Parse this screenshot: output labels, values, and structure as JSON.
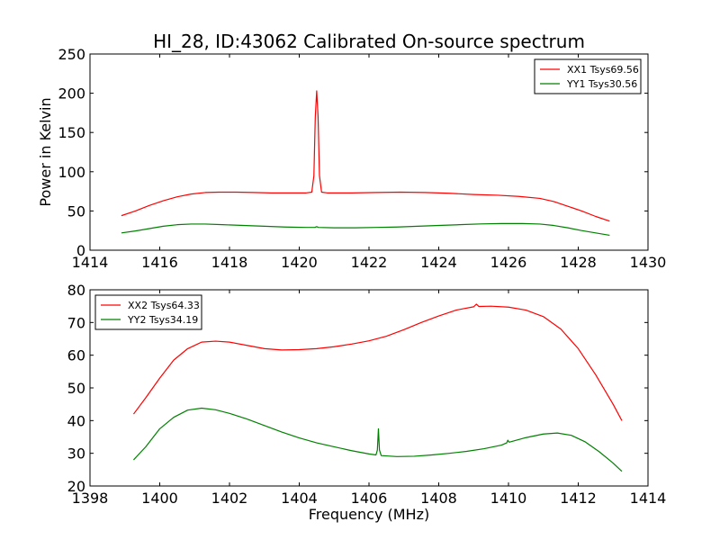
{
  "figure_title": "HI_28, ID:43062 Calibrated On-source spectrum",
  "chart_data": [
    {
      "type": "line",
      "title": "HI_28, ID:43062 Calibrated On-source spectrum",
      "xlabel": "",
      "ylabel": "Power in Kelvin",
      "xlim": [
        1414,
        1430
      ],
      "ylim": [
        0,
        250
      ],
      "xticks": [
        1414,
        1416,
        1418,
        1420,
        1422,
        1424,
        1426,
        1428,
        1430
      ],
      "yticks": [
        0,
        50,
        100,
        150,
        200,
        250
      ],
      "legend_position": "top-right",
      "grid": false,
      "series": [
        {
          "name": "XX1 Tsys69.56",
          "color": "#ff0000",
          "points": [
            [
              1414.9,
              44
            ],
            [
              1415.3,
              50
            ],
            [
              1415.7,
              57
            ],
            [
              1416.1,
              63
            ],
            [
              1416.5,
              68
            ],
            [
              1416.9,
              71.5
            ],
            [
              1417.3,
              73.5
            ],
            [
              1417.7,
              74
            ],
            [
              1418.2,
              74
            ],
            [
              1418.7,
              73.5
            ],
            [
              1419.2,
              73
            ],
            [
              1419.7,
              73
            ],
            [
              1420.2,
              73
            ],
            [
              1420.36,
              74
            ],
            [
              1420.42,
              95
            ],
            [
              1420.46,
              170
            ],
            [
              1420.5,
              203
            ],
            [
              1420.54,
              170
            ],
            [
              1420.58,
              95
            ],
            [
              1420.64,
              74
            ],
            [
              1420.8,
              73
            ],
            [
              1421.5,
              73
            ],
            [
              1422.2,
              73.5
            ],
            [
              1422.9,
              74
            ],
            [
              1423.6,
              73.5
            ],
            [
              1424.3,
              72.5
            ],
            [
              1425,
              71
            ],
            [
              1425.7,
              70
            ],
            [
              1426.3,
              68.5
            ],
            [
              1426.9,
              66
            ],
            [
              1427.3,
              62
            ],
            [
              1427.7,
              56
            ],
            [
              1428.1,
              50
            ],
            [
              1428.5,
              43
            ],
            [
              1428.9,
              37
            ]
          ]
        },
        {
          "name": "YY1 Tsys30.56",
          "color": "#008000",
          "points": [
            [
              1414.9,
              22
            ],
            [
              1415.3,
              24.5
            ],
            [
              1415.7,
              27.5
            ],
            [
              1416.1,
              30.5
            ],
            [
              1416.5,
              32.5
            ],
            [
              1416.9,
              33.3
            ],
            [
              1417.3,
              33.3
            ],
            [
              1417.8,
              32.5
            ],
            [
              1418.4,
              31.5
            ],
            [
              1419,
              30.5
            ],
            [
              1419.6,
              29.5
            ],
            [
              1420.2,
              29
            ],
            [
              1420.45,
              29
            ],
            [
              1420.5,
              30
            ],
            [
              1420.55,
              29
            ],
            [
              1421,
              28.5
            ],
            [
              1421.6,
              28.5
            ],
            [
              1422.2,
              29
            ],
            [
              1422.8,
              29.5
            ],
            [
              1423.4,
              30.5
            ],
            [
              1424,
              31.5
            ],
            [
              1424.6,
              32.5
            ],
            [
              1425.2,
              33.5
            ],
            [
              1425.8,
              34
            ],
            [
              1426.4,
              34
            ],
            [
              1426.9,
              33.3
            ],
            [
              1427.3,
              31.5
            ],
            [
              1427.7,
              28.5
            ],
            [
              1428.1,
              25
            ],
            [
              1428.5,
              22
            ],
            [
              1428.9,
              19
            ]
          ]
        }
      ]
    },
    {
      "type": "line",
      "title": "",
      "xlabel": "Frequency (MHz)",
      "ylabel": "",
      "xlim": [
        1398,
        1414
      ],
      "ylim": [
        20,
        80
      ],
      "xticks": [
        1398,
        1400,
        1402,
        1404,
        1406,
        1408,
        1410,
        1412,
        1414
      ],
      "yticks": [
        20,
        30,
        40,
        50,
        60,
        70,
        80
      ],
      "legend_position": "top-left",
      "grid": false,
      "series": [
        {
          "name": "XX2 Tsys64.33",
          "color": "#ff0000",
          "points": [
            [
              1399.25,
              42
            ],
            [
              1399.6,
              47
            ],
            [
              1400,
              53
            ],
            [
              1400.4,
              58.5
            ],
            [
              1400.8,
              62
            ],
            [
              1401.2,
              64
            ],
            [
              1401.6,
              64.3
            ],
            [
              1402,
              64
            ],
            [
              1402.5,
              63
            ],
            [
              1403,
              62
            ],
            [
              1403.5,
              61.6
            ],
            [
              1404,
              61.7
            ],
            [
              1404.5,
              62
            ],
            [
              1405,
              62.6
            ],
            [
              1405.5,
              63.4
            ],
            [
              1406,
              64.4
            ],
            [
              1406.5,
              65.8
            ],
            [
              1407,
              67.8
            ],
            [
              1407.5,
              70
            ],
            [
              1408,
              72
            ],
            [
              1408.5,
              73.8
            ],
            [
              1409,
              74.8
            ],
            [
              1409.08,
              75.6
            ],
            [
              1409.15,
              74.9
            ],
            [
              1409.5,
              75
            ],
            [
              1410,
              74.7
            ],
            [
              1410.5,
              73.8
            ],
            [
              1411,
              71.8
            ],
            [
              1411.5,
              68
            ],
            [
              1412,
              62
            ],
            [
              1412.5,
              54
            ],
            [
              1413,
              45
            ],
            [
              1413.25,
              40
            ]
          ]
        },
        {
          "name": "YY2 Tsys34.19",
          "color": "#008000",
          "points": [
            [
              1399.25,
              28
            ],
            [
              1399.6,
              32
            ],
            [
              1400,
              37.5
            ],
            [
              1400.4,
              41
            ],
            [
              1400.8,
              43.2
            ],
            [
              1401.2,
              43.8
            ],
            [
              1401.6,
              43.3
            ],
            [
              1402,
              42.2
            ],
            [
              1402.5,
              40.5
            ],
            [
              1403,
              38.5
            ],
            [
              1403.5,
              36.5
            ],
            [
              1404,
              34.7
            ],
            [
              1404.5,
              33.2
            ],
            [
              1405,
              32
            ],
            [
              1405.5,
              30.8
            ],
            [
              1406,
              29.8
            ],
            [
              1406.2,
              29.5
            ],
            [
              1406.24,
              31
            ],
            [
              1406.27,
              37.5
            ],
            [
              1406.3,
              31
            ],
            [
              1406.35,
              29.3
            ],
            [
              1406.8,
              29
            ],
            [
              1407.3,
              29.1
            ],
            [
              1407.8,
              29.5
            ],
            [
              1408.3,
              30
            ],
            [
              1408.8,
              30.6
            ],
            [
              1409.3,
              31.4
            ],
            [
              1409.8,
              32.5
            ],
            [
              1409.95,
              33.2
            ],
            [
              1409.98,
              34
            ],
            [
              1410.02,
              33.4
            ],
            [
              1410.5,
              34.8
            ],
            [
              1411,
              35.9
            ],
            [
              1411.4,
              36.2
            ],
            [
              1411.8,
              35.5
            ],
            [
              1412.2,
              33.5
            ],
            [
              1412.6,
              30.5
            ],
            [
              1413,
              27
            ],
            [
              1413.25,
              24.5
            ]
          ]
        }
      ]
    }
  ]
}
